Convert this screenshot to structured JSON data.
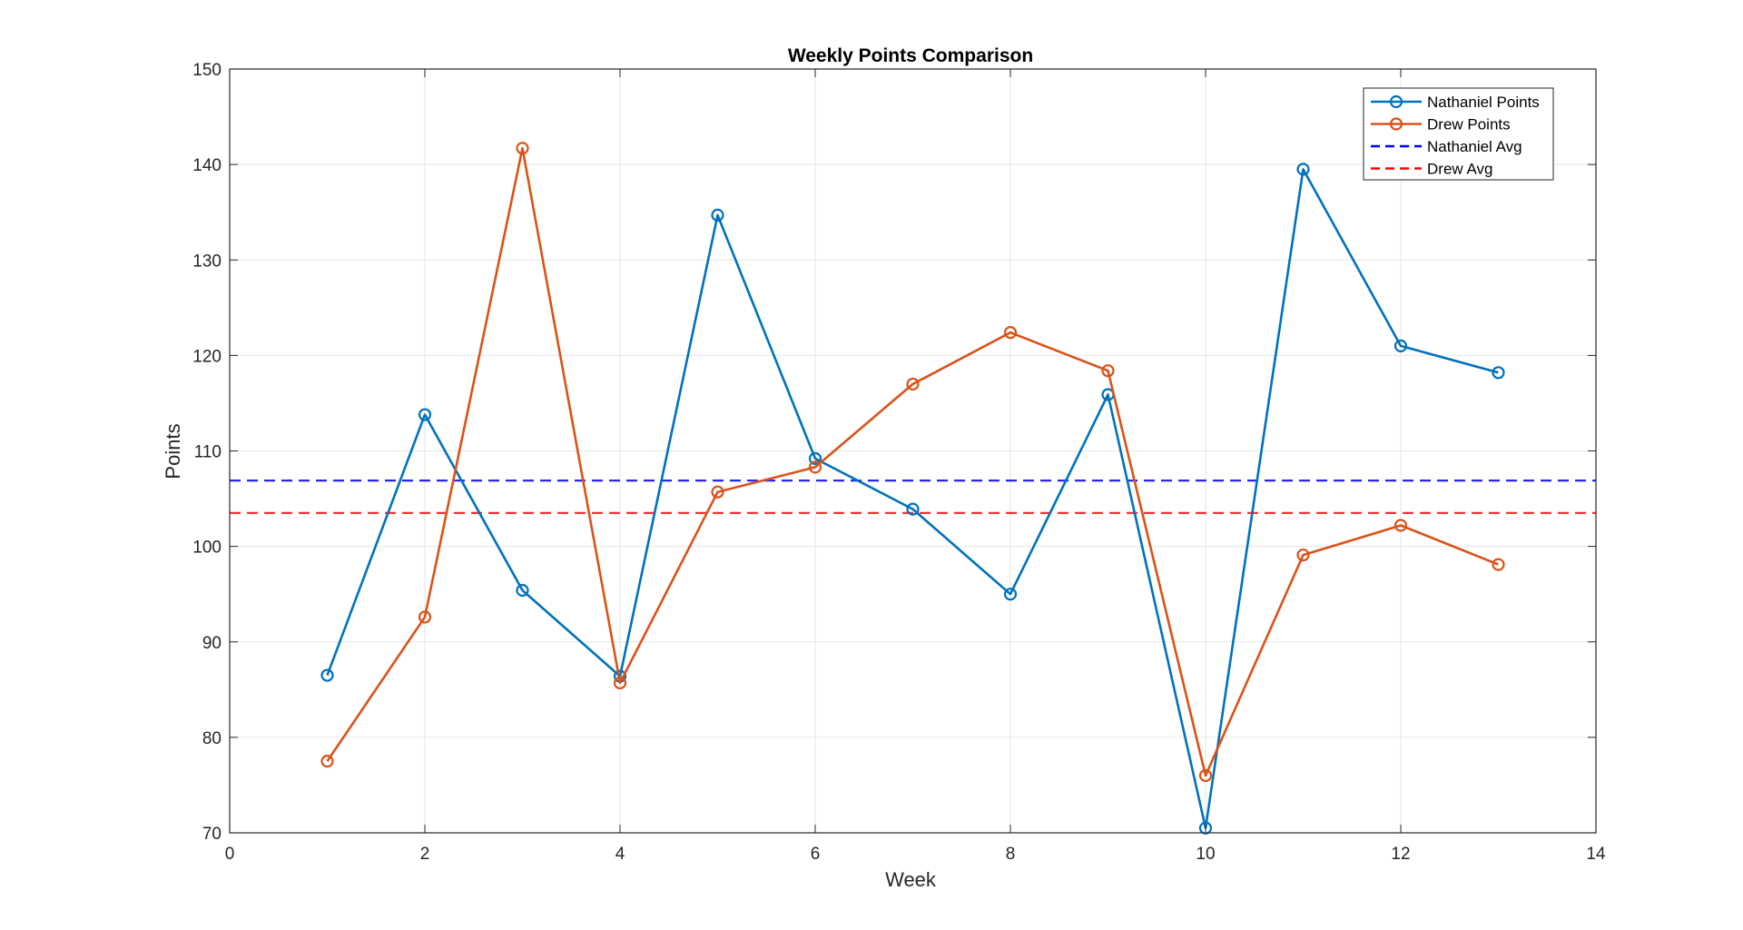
{
  "chart_data": {
    "type": "line",
    "title": "Weekly Points Comparison",
    "xlabel": "Week",
    "ylabel": "Points",
    "xlim": [
      0,
      14
    ],
    "ylim": [
      70,
      150
    ],
    "xticks": [
      0,
      2,
      4,
      6,
      8,
      10,
      12,
      14
    ],
    "yticks": [
      70,
      80,
      90,
      100,
      110,
      120,
      130,
      140,
      150
    ],
    "grid": true,
    "legend_position": "top-right",
    "x": [
      1,
      2,
      3,
      4,
      5,
      6,
      7,
      8,
      9,
      10,
      11,
      12,
      13
    ],
    "series": [
      {
        "name": "Nathaniel Points",
        "style": "solid-circle-markers",
        "color": "#0072BD",
        "values": [
          86.5,
          113.8,
          95.4,
          86.4,
          134.7,
          109.2,
          103.9,
          95.0,
          115.9,
          70.5,
          139.5,
          121.0,
          118.2
        ]
      },
      {
        "name": "Drew Points",
        "style": "solid-circle-markers",
        "color": "#D95319",
        "values": [
          77.5,
          92.6,
          141.7,
          85.7,
          105.7,
          108.3,
          117.0,
          122.4,
          118.4,
          76.0,
          99.1,
          102.2,
          98.1
        ]
      },
      {
        "name": "Nathaniel Avg",
        "style": "dashed",
        "color": "#0000FF",
        "value": 106.9
      },
      {
        "name": "Drew Avg",
        "style": "dashed",
        "color": "#FF0000",
        "value": 103.5
      }
    ]
  }
}
